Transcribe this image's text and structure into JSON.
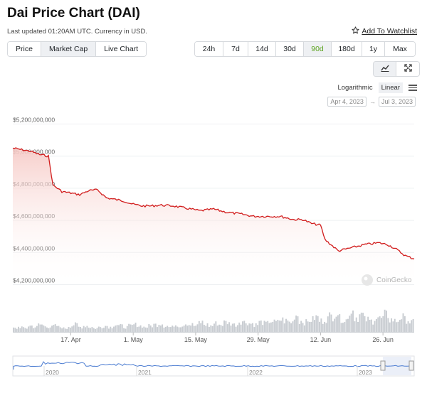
{
  "header": {
    "title": "Dai Price Chart (DAI)",
    "updated": "Last updated 01:20AM UTC. Currency in USD.",
    "watchlist_label": "Add To Watchlist",
    "watchlist_icon": "star-outline-icon"
  },
  "tabs": [
    {
      "label": "Price",
      "active": false
    },
    {
      "label": "Market Cap",
      "active": true
    },
    {
      "label": "Live Chart",
      "active": false
    }
  ],
  "ranges": [
    {
      "label": "24h",
      "active": false
    },
    {
      "label": "7d",
      "active": false
    },
    {
      "label": "14d",
      "active": false
    },
    {
      "label": "30d",
      "active": false
    },
    {
      "label": "90d",
      "active": true
    },
    {
      "label": "180d",
      "active": false
    },
    {
      "label": "1y",
      "active": false
    },
    {
      "label": "Max",
      "active": false
    }
  ],
  "view_toggle": {
    "line_icon": "line-chart-icon",
    "candle_icon": "expand-icon"
  },
  "scale": {
    "log_label": "Logarithmic",
    "linear_label": "Linear",
    "selected": "Linear",
    "menu_icon": "hamburger-menu-icon"
  },
  "date_range": {
    "from": "Apr 4, 2023",
    "arrow": "→",
    "to": "Jul 3, 2023"
  },
  "watermark": "CoinGecko",
  "colors": {
    "line": "#d11c1c",
    "fill_top": "#f6c9c5",
    "active_range": "#5ca31f",
    "volume": "#c9cdd2",
    "navigator": "#4a7bd1"
  },
  "chart_data": {
    "type": "area",
    "title": "",
    "xlabel": "",
    "ylabel": "",
    "y_ticks": [
      "$5,200,000,000",
      "$5,000,000,000",
      "$4,800,000,000",
      "$4,600,000,000",
      "$4,400,000,000",
      "$4,200,000,000"
    ],
    "ylim": [
      4180000000,
      5220000000
    ],
    "x_ticks": [
      "17. Apr",
      "1. May",
      "15. May",
      "29. May",
      "12. Jun",
      "26. Jun"
    ],
    "x_range": [
      "2023-04-04",
      "2023-07-03"
    ],
    "grid": true,
    "series": [
      {
        "x": [
          "2023-04-04",
          "2023-04-06",
          "2023-04-08",
          "2023-04-10",
          "2023-04-12",
          "2023-04-13",
          "2023-04-15",
          "2023-04-17",
          "2023-04-19",
          "2023-04-21",
          "2023-04-23",
          "2023-04-25",
          "2023-04-27",
          "2023-04-29",
          "2023-05-01",
          "2023-05-03",
          "2023-05-05",
          "2023-05-07",
          "2023-05-10",
          "2023-05-13",
          "2023-05-16",
          "2023-05-19",
          "2023-05-22",
          "2023-05-25",
          "2023-05-28",
          "2023-05-31",
          "2023-06-03",
          "2023-06-06",
          "2023-06-08",
          "2023-06-10",
          "2023-06-12",
          "2023-06-13",
          "2023-06-16",
          "2023-06-19",
          "2023-06-22",
          "2023-06-25",
          "2023-06-27",
          "2023-06-29",
          "2023-07-01",
          "2023-07-03"
        ],
        "values": [
          5050000000,
          5040000000,
          5030000000,
          5010000000,
          5000000000,
          4820000000,
          4780000000,
          4770000000,
          4760000000,
          4785000000,
          4790000000,
          4740000000,
          4730000000,
          4720000000,
          4700000000,
          4690000000,
          4690000000,
          4695000000,
          4690000000,
          4675000000,
          4660000000,
          4670000000,
          4650000000,
          4640000000,
          4625000000,
          4625000000,
          4625000000,
          4605000000,
          4605000000,
          4580000000,
          4570000000,
          4480000000,
          4410000000,
          4430000000,
          4450000000,
          4460000000,
          4450000000,
          4420000000,
          4380000000,
          4360000000
        ]
      }
    ],
    "volume": {
      "values": [
        3,
        4,
        3,
        5,
        4,
        6,
        5,
        4,
        5,
        4,
        3,
        5,
        6,
        4,
        5,
        4,
        3,
        4,
        5,
        4,
        6,
        5,
        4,
        5,
        6,
        5,
        4,
        5,
        6,
        7,
        5,
        4,
        6,
        5,
        7,
        6,
        5,
        8,
        6,
        5,
        7,
        6,
        8,
        7,
        6,
        9,
        8,
        7,
        6,
        8,
        7,
        9,
        8,
        10,
        9,
        8,
        14,
        9,
        8,
        10,
        12,
        9,
        11,
        13,
        16,
        11,
        10,
        18,
        12,
        14,
        10,
        9,
        12,
        11,
        14,
        10,
        9,
        12,
        10,
        8
      ]
    },
    "navigator": {
      "tick_labels": [
        "2020",
        "2021",
        "2022",
        "2023"
      ]
    }
  }
}
